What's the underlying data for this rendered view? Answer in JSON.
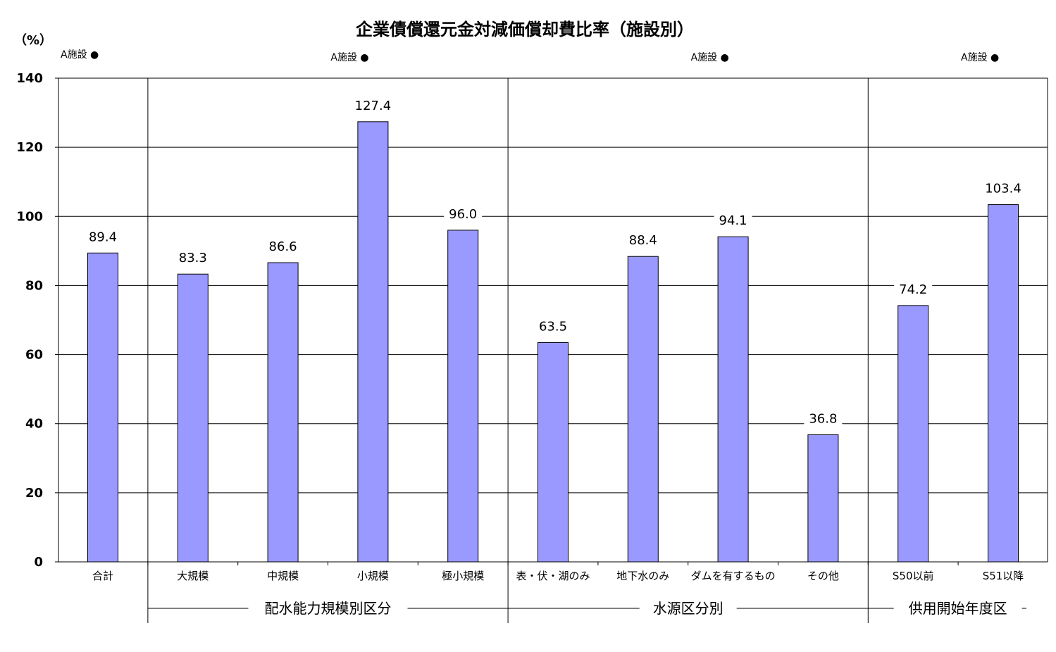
{
  "chart_data": {
    "type": "bar",
    "title": "企業債償還元金対減価償却費比率（施設別）",
    "ylabel": "（%）",
    "ylim": [
      0,
      140
    ],
    "yticks": [
      0,
      20,
      40,
      60,
      80,
      100,
      120,
      140
    ],
    "grid": "horizontal",
    "categories": [
      "合計",
      "大規模",
      "中規模",
      "小規模",
      "極小規模",
      "表・伏・湖のみ",
      "地下水のみ",
      "ダムを有するもの",
      "その他",
      "S50以前",
      "S51以降"
    ],
    "values": [
      89.4,
      83.3,
      86.6,
      127.4,
      96.0,
      63.5,
      88.4,
      94.1,
      36.8,
      74.2,
      103.4
    ],
    "value_labels": [
      "89.4",
      "83.3",
      "86.6",
      "127.4",
      "96.0",
      "63.5",
      "88.4",
      "94.1",
      "36.8",
      "74.2",
      "103.4"
    ],
    "bar_color": "#9999ff",
    "groups": [
      {
        "label": "配水能力規模別区分",
        "start": 1,
        "end": 4
      },
      {
        "label": "水源区分別",
        "start": 5,
        "end": 8
      },
      {
        "label": "供用開始年度区",
        "start": 9,
        "end": 10
      }
    ],
    "annotations": [
      {
        "text": "A施設 ●",
        "at_category": 0
      },
      {
        "text": "A施設 ●",
        "at_category": 3
      },
      {
        "text": "A施設 ●",
        "at_category": 7
      },
      {
        "text": "A施設 ●",
        "at_category": 10
      }
    ]
  }
}
